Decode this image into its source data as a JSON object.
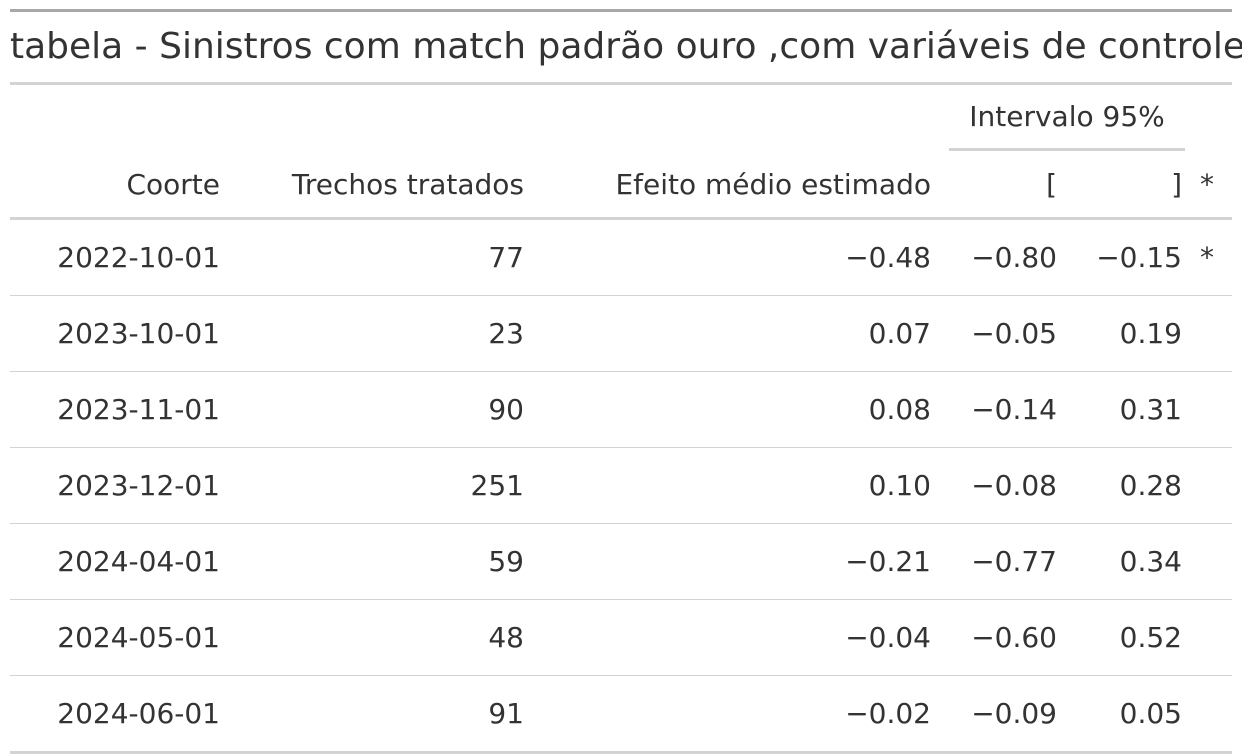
{
  "chart_data": {
    "type": "table",
    "title": "tabela - Sinistros com match padrão ouro ,com variáveis de controle",
    "spanner": "Intervalo 95%",
    "columns": [
      "Coorte",
      "Trechos tratados",
      "Efeito médio estimado",
      "[",
      "]",
      "*"
    ],
    "rows": [
      {
        "coorte": "2022-10-01",
        "trechos": "77",
        "efeito": "−0.48",
        "low": "−0.80",
        "high": "−0.15",
        "sig": "*"
      },
      {
        "coorte": "2023-10-01",
        "trechos": "23",
        "efeito": "0.07",
        "low": "−0.05",
        "high": "0.19",
        "sig": ""
      },
      {
        "coorte": "2023-11-01",
        "trechos": "90",
        "efeito": "0.08",
        "low": "−0.14",
        "high": "0.31",
        "sig": ""
      },
      {
        "coorte": "2023-12-01",
        "trechos": "251",
        "efeito": "0.10",
        "low": "−0.08",
        "high": "0.28",
        "sig": ""
      },
      {
        "coorte": "2024-04-01",
        "trechos": "59",
        "efeito": "−0.21",
        "low": "−0.77",
        "high": "0.34",
        "sig": ""
      },
      {
        "coorte": "2024-05-01",
        "trechos": "48",
        "efeito": "−0.04",
        "low": "−0.60",
        "high": "0.52",
        "sig": ""
      },
      {
        "coorte": "2024-06-01",
        "trechos": "91",
        "efeito": "−0.02",
        "low": "−0.09",
        "high": "0.05",
        "sig": ""
      }
    ]
  }
}
